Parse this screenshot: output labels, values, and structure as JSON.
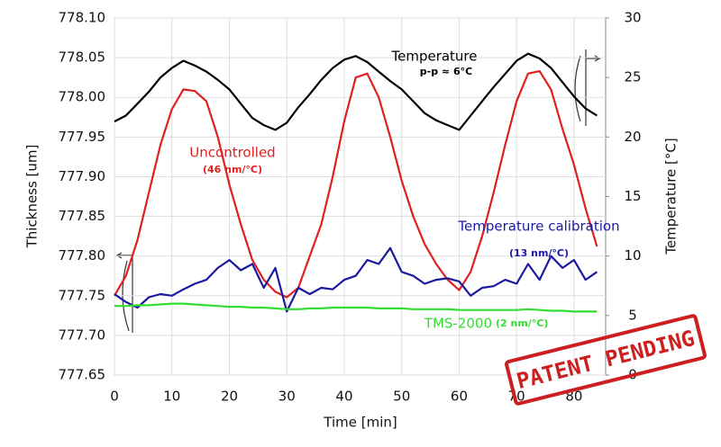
{
  "chart_data": {
    "type": "line",
    "x": [
      0,
      2,
      4,
      6,
      8,
      10,
      12,
      14,
      16,
      18,
      20,
      22,
      24,
      26,
      28,
      30,
      32,
      34,
      36,
      38,
      40,
      42,
      44,
      46,
      48,
      50,
      52,
      54,
      56,
      58,
      60,
      62,
      64,
      66,
      68,
      70,
      72,
      74,
      76,
      78,
      80,
      82,
      84
    ],
    "xlabel": "Time [min]",
    "ylabel": "Thickness [um]",
    "y2label": "Temperature [°C]",
    "xlim": [
      0,
      85.5
    ],
    "xticks": [
      0,
      10,
      20,
      30,
      40,
      50,
      60,
      70,
      80
    ],
    "ylim": [
      777.65,
      778.1
    ],
    "yticks": [
      {
        "value": 777.65,
        "label": "777.65"
      },
      {
        "value": 777.7,
        "label": "777.70"
      },
      {
        "value": 777.75,
        "label": "777.75"
      },
      {
        "value": 777.8,
        "label": "777.80"
      },
      {
        "value": 777.85,
        "label": "777.85"
      },
      {
        "value": 777.9,
        "label": "777.90"
      },
      {
        "value": 777.95,
        "label": "777.95"
      },
      {
        "value": 778.0,
        "label": "778.00"
      },
      {
        "value": 778.05,
        "label": "778.05"
      },
      {
        "value": 778.1,
        "label": "778.10"
      }
    ],
    "y2lim": [
      0,
      30
    ],
    "y2ticks": [
      0,
      5,
      10,
      15,
      20,
      25,
      30
    ],
    "grid": true,
    "series": [
      {
        "name": "Temperature",
        "color": "#000000",
        "axis": "y2",
        "values": [
          21.3,
          21.8,
          22.8,
          23.8,
          25.0,
          25.8,
          26.4,
          26.0,
          25.5,
          24.8,
          24.0,
          22.8,
          21.6,
          21.0,
          20.6,
          21.2,
          22.5,
          23.6,
          24.8,
          25.8,
          26.5,
          26.8,
          26.3,
          25.5,
          24.7,
          24.0,
          23.0,
          22.0,
          21.4,
          21.0,
          20.6,
          21.8,
          23.0,
          24.2,
          25.3,
          26.4,
          27.0,
          26.6,
          25.8,
          24.6,
          23.4,
          22.4,
          21.8
        ]
      },
      {
        "name": "Uncontrolled",
        "color": "#e02020",
        "values": [
          777.75,
          777.775,
          777.82,
          777.88,
          777.94,
          777.985,
          778.01,
          778.008,
          777.995,
          777.95,
          777.89,
          777.84,
          777.795,
          777.77,
          777.755,
          777.748,
          777.76,
          777.8,
          777.84,
          777.9,
          777.97,
          778.025,
          778.03,
          778.0,
          777.95,
          777.895,
          777.85,
          777.815,
          777.79,
          777.77,
          777.757,
          777.78,
          777.825,
          777.88,
          777.94,
          777.995,
          778.03,
          778.033,
          778.01,
          777.96,
          777.915,
          777.86,
          777.812
        ]
      },
      {
        "name": "Temperature calibration",
        "color": "#1a1aa0",
        "values": [
          777.752,
          777.742,
          777.735,
          777.748,
          777.752,
          777.75,
          777.758,
          777.765,
          777.77,
          777.785,
          777.795,
          777.782,
          777.79,
          777.76,
          777.785,
          777.73,
          777.76,
          777.752,
          777.76,
          777.758,
          777.77,
          777.775,
          777.795,
          777.79,
          777.81,
          777.78,
          777.775,
          777.765,
          777.77,
          777.772,
          777.768,
          777.75,
          777.76,
          777.762,
          777.77,
          777.765,
          777.79,
          777.77,
          777.8,
          777.785,
          777.795,
          777.77,
          777.78
        ]
      },
      {
        "name": "TMS-2000",
        "color": "#33dd33",
        "values": [
          777.737,
          777.737,
          777.738,
          777.738,
          777.739,
          777.74,
          777.74,
          777.739,
          777.738,
          777.737,
          777.736,
          777.736,
          777.735,
          777.735,
          777.734,
          777.733,
          777.733,
          777.734,
          777.734,
          777.735,
          777.735,
          777.735,
          777.735,
          777.734,
          777.734,
          777.734,
          777.733,
          777.733,
          777.733,
          777.733,
          777.732,
          777.732,
          777.732,
          777.732,
          777.732,
          777.732,
          777.733,
          777.732,
          777.731,
          777.731,
          777.73,
          777.73,
          777.73
        ]
      }
    ],
    "annotations": [
      "p-p ≈ 6°C",
      "(46 nm/°C)",
      "(13 nm/°C)",
      "(2 nm/°C)"
    ],
    "stamp": "PATENT PENDING"
  }
}
